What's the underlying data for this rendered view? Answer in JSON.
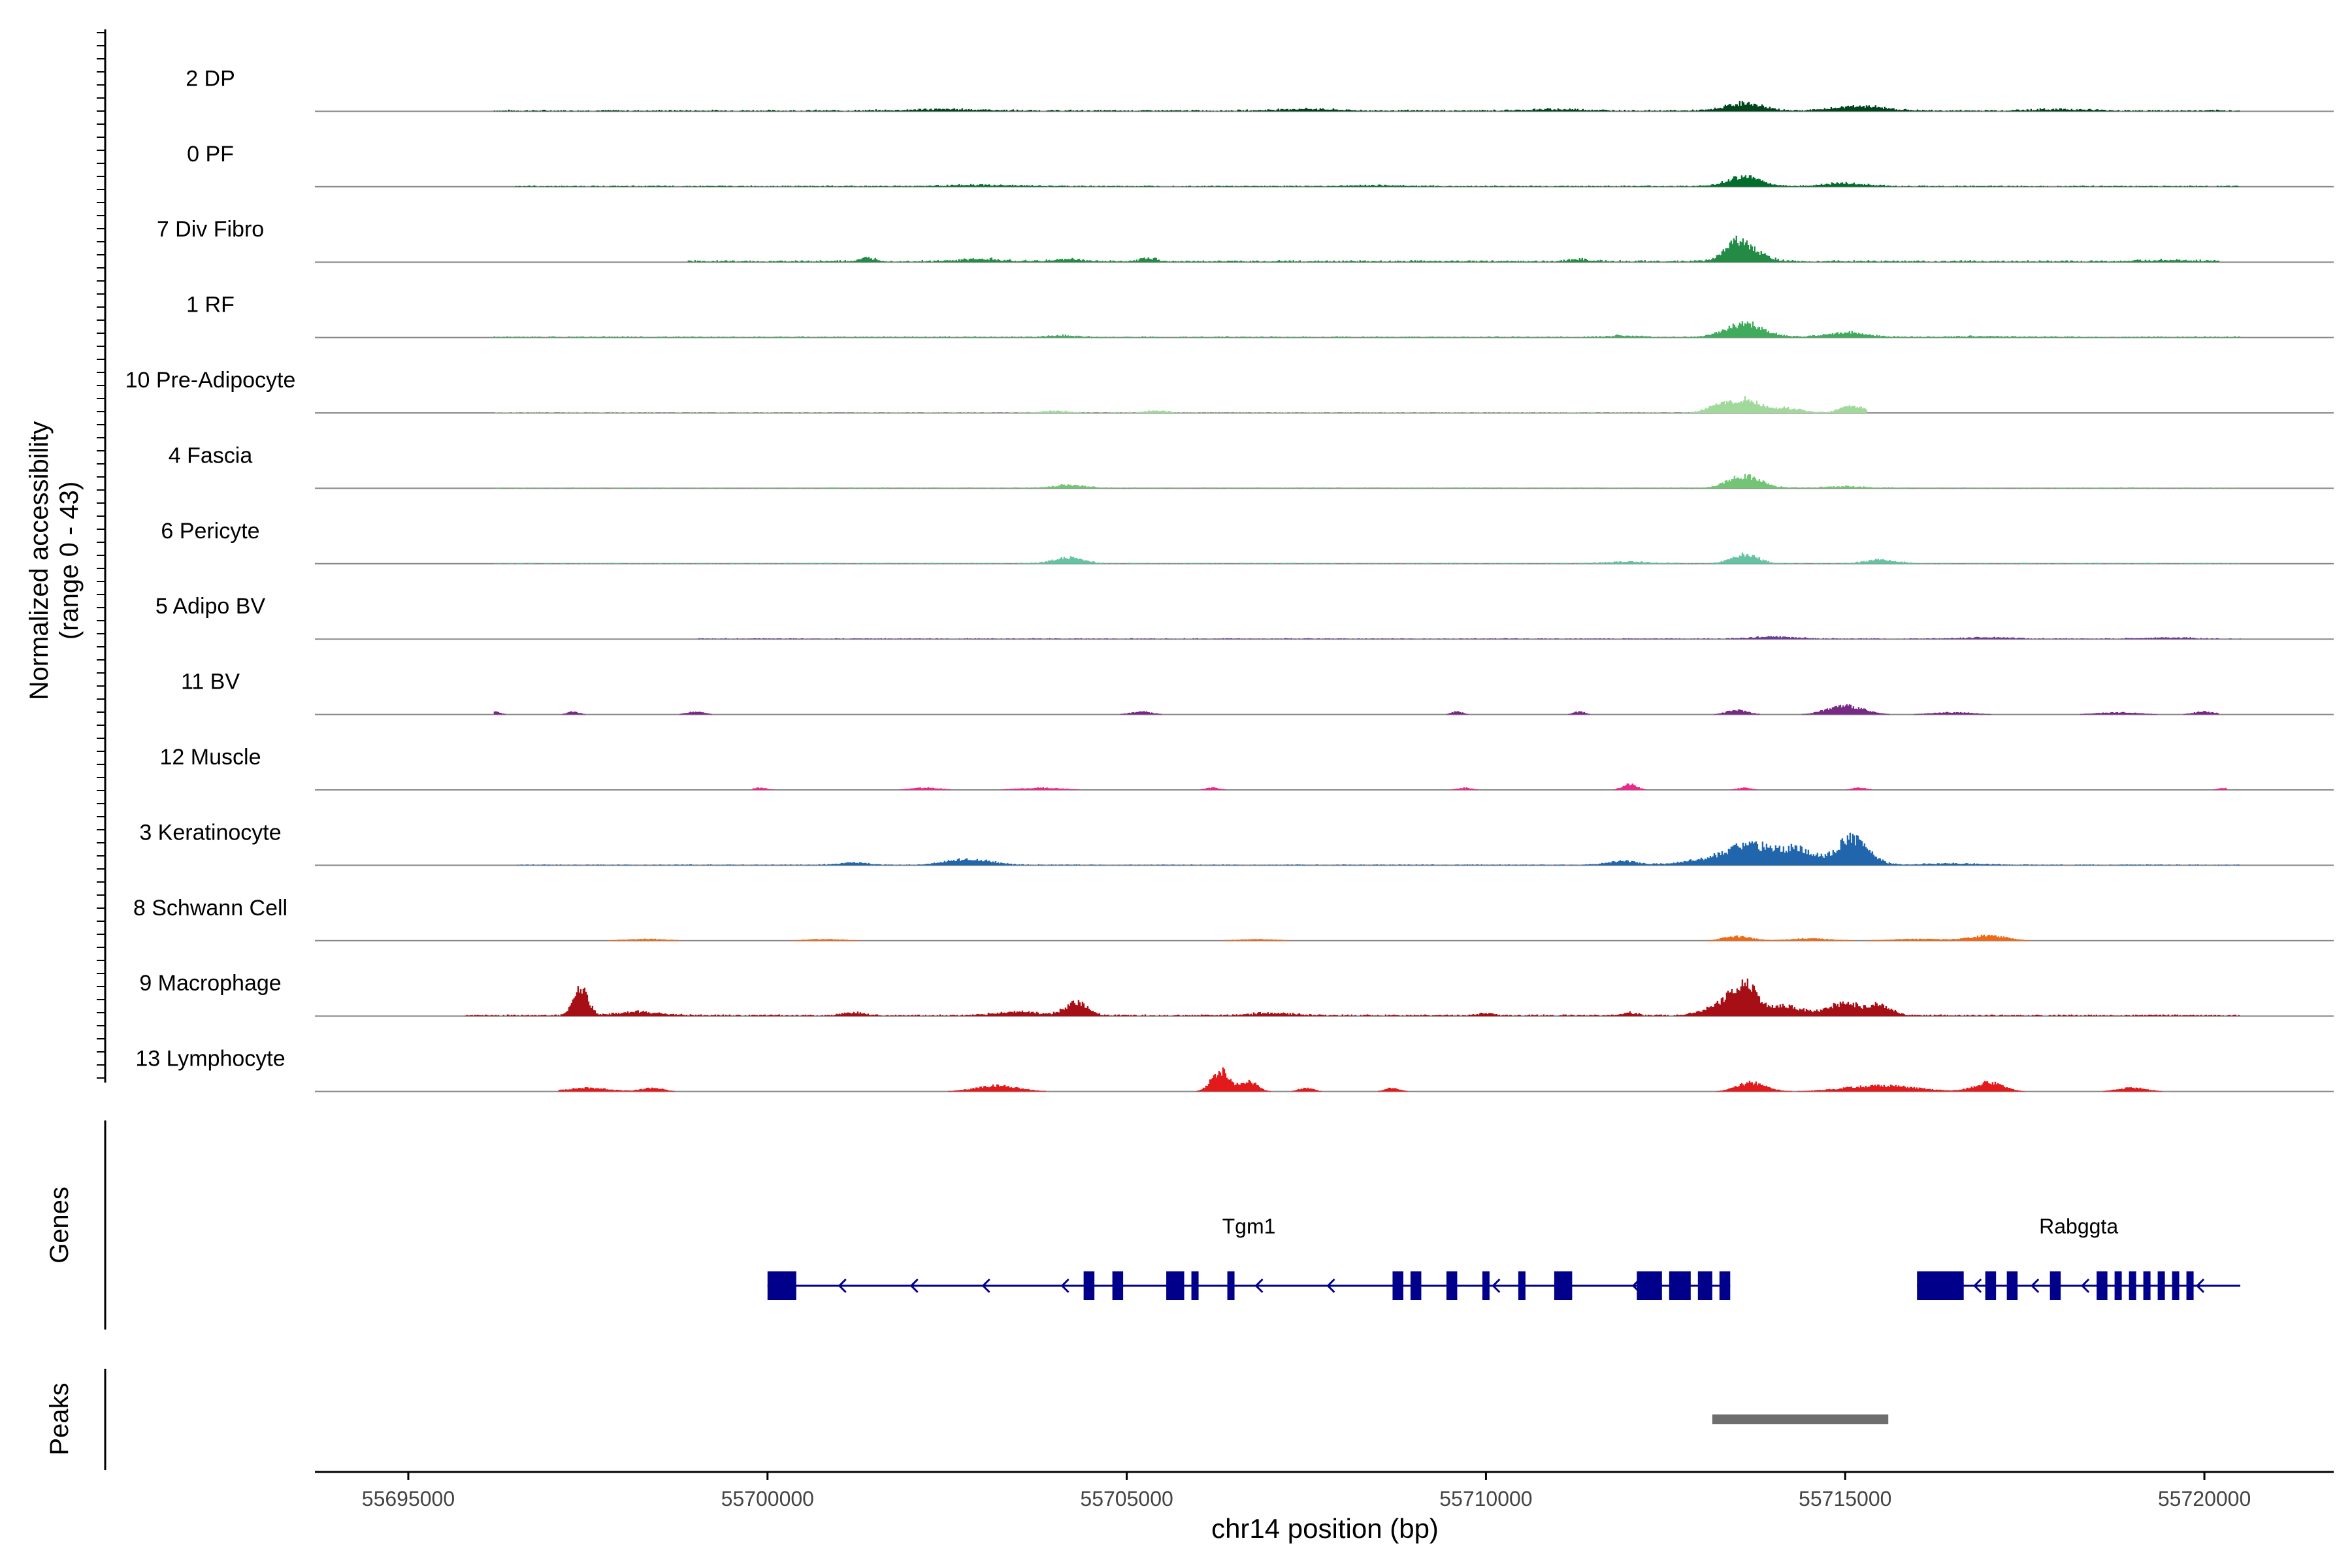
{
  "chart_data": {
    "type": "area",
    "title": "",
    "ylabel_line1": "Normalized accessibility",
    "ylabel_line2": "(range 0 - 43)",
    "y_range": [
      0,
      43
    ],
    "xlabel": "chr14 position (bp)",
    "xlim": [
      55693700,
      55721800
    ],
    "x_ticks": [
      55695000,
      55700000,
      55705000,
      55710000,
      55715000,
      55720000
    ],
    "x_tick_labels": [
      "55695000",
      "55700000",
      "55705000",
      "55710000",
      "55715000",
      "55720000"
    ],
    "tracks": [
      {
        "name": "2 DP",
        "color": "#00441b",
        "region": [
          55696200,
          55720500
        ],
        "base": 0.5,
        "peaks": [
          [
            55713600,
            5,
            250
          ],
          [
            55715200,
            3,
            350
          ],
          [
            55707500,
            1.2,
            400
          ],
          [
            55702500,
            1,
            500
          ],
          [
            55711000,
            1,
            400
          ],
          [
            55718000,
            1,
            400
          ]
        ]
      },
      {
        "name": "0 PF",
        "color": "#006d2c",
        "region": [
          55696500,
          55720500
        ],
        "base": 0.4,
        "peaks": [
          [
            55713600,
            6.5,
            230
          ],
          [
            55715000,
            2,
            300
          ],
          [
            55703000,
            0.8,
            500
          ],
          [
            55708500,
            0.6,
            400
          ]
        ]
      },
      {
        "name": "7 Div Fibro",
        "color": "#238b45",
        "region": [
          55698900,
          55720200
        ],
        "base": 0.6,
        "peaks": [
          [
            55713600,
            10,
            220
          ],
          [
            55713450,
            6,
            120
          ],
          [
            55701400,
            2,
            120
          ],
          [
            55705300,
            2.2,
            120
          ],
          [
            55703000,
            1.5,
            300
          ],
          [
            55704200,
            1.5,
            200
          ],
          [
            55711300,
            1.5,
            150
          ],
          [
            55719500,
            1,
            300
          ]
        ]
      },
      {
        "name": "1 RF",
        "color": "#41ab5d",
        "region": [
          55696200,
          55720500
        ],
        "base": 0.4,
        "peaks": [
          [
            55713600,
            9,
            260
          ],
          [
            55715000,
            3,
            300
          ],
          [
            55704100,
            1,
            200
          ],
          [
            55711900,
            1,
            200
          ],
          [
            55717000,
            0.5,
            400
          ]
        ]
      },
      {
        "name": "10 Pre-Adipocyte",
        "color": "#a1d99b",
        "region": [
          55696200,
          55715300
        ],
        "base": 0.3,
        "peaks": [
          [
            55713600,
            9,
            200
          ],
          [
            55713200,
            4,
            150
          ],
          [
            55714200,
            3,
            200
          ],
          [
            55715100,
            5,
            150
          ],
          [
            55705400,
            1.2,
            150
          ],
          [
            55704000,
            1,
            200
          ]
        ]
      },
      {
        "name": "4 Fascia",
        "color": "#74c476",
        "region": [
          55696200,
          55720500
        ],
        "base": 0.3,
        "peaks": [
          [
            55713600,
            8,
            230
          ],
          [
            55704200,
            2,
            220
          ],
          [
            55715000,
            1,
            300
          ]
        ]
      },
      {
        "name": "6 Pericyte",
        "color": "#66c2a4",
        "region": [
          55696200,
          55720500
        ],
        "base": 0.3,
        "peaks": [
          [
            55713600,
            6,
            180
          ],
          [
            55704200,
            4,
            200
          ],
          [
            55715500,
            2.5,
            200
          ],
          [
            55712000,
            1,
            300
          ]
        ]
      },
      {
        "name": "5 Adipo BV",
        "color": "#6a3d9a",
        "region": [
          55699000,
          55720500
        ],
        "base": 0.3,
        "peaks": [
          [
            55714000,
            1.5,
            300
          ],
          [
            55717000,
            1,
            300
          ],
          [
            55719500,
            0.8,
            300
          ]
        ]
      },
      {
        "name": "11 BV",
        "color": "#762a83",
        "region": [
          55696200,
          55720200
        ],
        "base": 0,
        "peaks": [
          [
            55715000,
            6,
            250
          ],
          [
            55713500,
            3,
            150
          ],
          [
            55696200,
            2,
            80
          ],
          [
            55697300,
            2,
            80
          ],
          [
            55699000,
            2,
            120
          ],
          [
            55705200,
            2,
            150
          ],
          [
            55709600,
            2,
            80
          ],
          [
            55711300,
            2,
            80
          ],
          [
            55716500,
            1.5,
            300
          ],
          [
            55718800,
            1.5,
            300
          ],
          [
            55720000,
            2,
            150
          ]
        ]
      },
      {
        "name": "12 Muscle",
        "color": "#e7298a",
        "region": [
          55699800,
          55720300
        ],
        "base": 0,
        "peaks": [
          [
            55712000,
            4,
            100
          ],
          [
            55699900,
            1.5,
            100
          ],
          [
            55702200,
            1.5,
            200
          ],
          [
            55703800,
            1.5,
            300
          ],
          [
            55706200,
            1.5,
            100
          ],
          [
            55709700,
            1.5,
            100
          ],
          [
            55713600,
            1.5,
            100
          ],
          [
            55715200,
            1.5,
            100
          ],
          [
            55720300,
            1.5,
            100
          ]
        ]
      },
      {
        "name": "3 Keratinocyte",
        "color": "#2166ac",
        "region": [
          55696500,
          55720500
        ],
        "base": 0.3,
        "peaks": [
          [
            55715100,
            18,
            220
          ],
          [
            55713600,
            9,
            250
          ],
          [
            55714000,
            8,
            220
          ],
          [
            55714400,
            9,
            200
          ],
          [
            55702800,
            4,
            300
          ],
          [
            55701200,
            1.5,
            200
          ],
          [
            55711900,
            2.5,
            200
          ],
          [
            55713200,
            4,
            400
          ],
          [
            55716500,
            1,
            400
          ]
        ]
      },
      {
        "name": "8 Schwann Cell",
        "color": "#f16913",
        "region": [
          55696200,
          55720000
        ],
        "base": 0,
        "peaks": [
          [
            55717000,
            3.5,
            250
          ],
          [
            55713500,
            3,
            200
          ],
          [
            55714500,
            1.5,
            300
          ],
          [
            55716000,
            1.2,
            400
          ],
          [
            55698300,
            1.2,
            300
          ],
          [
            55700800,
            1,
            300
          ],
          [
            55706800,
            1,
            300
          ]
        ]
      },
      {
        "name": "9 Macrophage",
        "color": "#a50f15",
        "region": [
          55695800,
          55720500
        ],
        "base": 0.5,
        "peaks": [
          [
            55697400,
            18,
            100
          ],
          [
            55713600,
            21,
            180
          ],
          [
            55713200,
            6,
            200
          ],
          [
            55714200,
            6,
            200
          ],
          [
            55715000,
            8,
            250
          ],
          [
            55715500,
            6,
            150
          ],
          [
            55704300,
            9,
            150
          ],
          [
            55698200,
            2.5,
            300
          ],
          [
            55703500,
            2.5,
            300
          ],
          [
            55701200,
            2,
            150
          ],
          [
            55707000,
            1.5,
            300
          ],
          [
            55710000,
            1.5,
            100
          ],
          [
            55712000,
            2,
            100
          ]
        ]
      },
      {
        "name": "13 Lymphocyte",
        "color": "#e31a1c",
        "region": [
          55697100,
          55720200
        ],
        "base": 0,
        "peaks": [
          [
            55706300,
            14,
            120
          ],
          [
            55706700,
            7,
            120
          ],
          [
            55703200,
            4,
            300
          ],
          [
            55713700,
            6,
            200
          ],
          [
            55717000,
            6,
            200
          ],
          [
            55715500,
            4,
            500
          ],
          [
            55697500,
            2.5,
            300
          ],
          [
            55698400,
            2.5,
            150
          ],
          [
            55707500,
            2.5,
            100
          ],
          [
            55708700,
            2.5,
            100
          ],
          [
            55719000,
            2.5,
            200
          ]
        ]
      }
    ],
    "genes": {
      "label": "Genes",
      "items": [
        {
          "name": "Tgm1",
          "start": 55700000,
          "end": 55713400,
          "strand": "-",
          "exons": [
            [
              55700000,
              55700400
            ],
            [
              55704400,
              55704550
            ],
            [
              55704800,
              55704950
            ],
            [
              55705550,
              55705800
            ],
            [
              55705900,
              55706000
            ],
            [
              55706400,
              55706500
            ],
            [
              55708700,
              55708850
            ],
            [
              55708950,
              55709100
            ],
            [
              55709450,
              55709600
            ],
            [
              55709950,
              55710050
            ],
            [
              55710450,
              55710550
            ],
            [
              55710950,
              55711200
            ],
            [
              55712100,
              55712450
            ],
            [
              55712550,
              55712850
            ],
            [
              55712950,
              55713150
            ],
            [
              55713250,
              55713400
            ]
          ],
          "arrows": [
            55701000,
            55702000,
            55703000,
            55704100,
            55706800,
            55707800,
            55709000,
            55710100,
            55712050
          ]
        },
        {
          "name": "Rabggta",
          "start": 55716000,
          "end": 55720500,
          "strand": "-",
          "exons": [
            [
              55716000,
              55716650
            ],
            [
              55716950,
              55717100
            ],
            [
              55717250,
              55717400
            ],
            [
              55717850,
              55718000
            ],
            [
              55718500,
              55718650
            ],
            [
              55718750,
              55718850
            ],
            [
              55718950,
              55719050
            ],
            [
              55719150,
              55719250
            ],
            [
              55719350,
              55719450
            ],
            [
              55719550,
              55719650
            ],
            [
              55719750,
              55719850
            ]
          ],
          "arrows": [
            55716800,
            55717600,
            55718300,
            55719900
          ]
        }
      ]
    },
    "peaks": {
      "label": "Peaks",
      "items": [
        [
          55713150,
          55715600
        ]
      ]
    }
  }
}
